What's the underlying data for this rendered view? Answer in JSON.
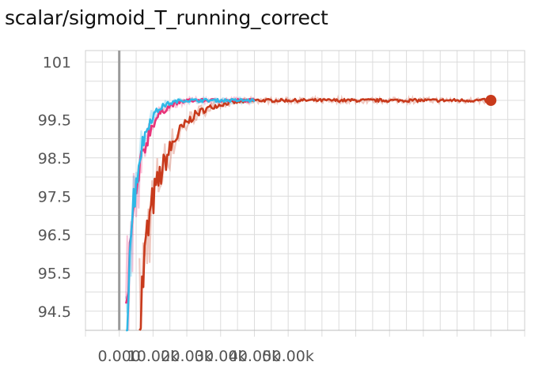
{
  "chart_data": {
    "type": "line",
    "title": "scalar/sigmoid_T_running_correct",
    "xlim": [
      -10000,
      120000
    ],
    "ylim": [
      94.0,
      101.3
    ],
    "x_ticks": [
      0,
      10000,
      20000,
      30000,
      40000,
      50000
    ],
    "x_tick_labels": [
      "0.000",
      "10.00k",
      "20.00k",
      "30.00k",
      "40.00k",
      "50.00k"
    ],
    "y_ticks": [
      94.5,
      95.5,
      96.5,
      97.5,
      98.5,
      99.5,
      101
    ],
    "y_tick_labels": [
      "94.5",
      "95.5",
      "96.5",
      "97.5",
      "98.5",
      "99.5",
      "101"
    ],
    "grid": true,
    "series": [
      {
        "color": "#c83a1c",
        "x": [
          6000,
          7000,
          8000,
          10000,
          12000,
          14000,
          16000,
          18000,
          20000,
          22000,
          25000,
          28000,
          32000,
          36000,
          40000,
          45000,
          50000,
          55000,
          60000,
          65000,
          70000,
          75000,
          80000,
          85000,
          90000,
          95000,
          100000,
          105000,
          110000
        ],
        "y": [
          94.0,
          95.3,
          96.3,
          97.4,
          98.0,
          98.5,
          98.9,
          99.2,
          99.4,
          99.6,
          99.75,
          99.85,
          99.93,
          99.97,
          100.0,
          100.0,
          100.0,
          100.0,
          100.0,
          100.0,
          100.0,
          100.0,
          100.0,
          100.0,
          100.0,
          100.0,
          100.0,
          100.0,
          100.0
        ],
        "end_marker": true
      },
      {
        "color": "#e8347a",
        "x": [
          2000,
          3000,
          4000,
          5000,
          6000,
          7000,
          8000,
          9000,
          10000,
          12000,
          14000,
          16000,
          18000,
          20000,
          25000,
          30000,
          35000,
          40000
        ],
        "y": [
          94.0,
          95.8,
          96.8,
          97.5,
          98.1,
          98.6,
          98.9,
          99.2,
          99.4,
          99.65,
          99.8,
          99.9,
          99.95,
          100.0,
          100.0,
          100.0,
          100.0,
          100.0
        ]
      },
      {
        "color": "#2fb8e6",
        "x": [
          2000,
          3000,
          4000,
          5000,
          6000,
          7000,
          8000,
          9000,
          10000,
          12000,
          14000,
          16000,
          18000,
          20000,
          25000,
          30000,
          35000,
          40000
        ],
        "y": [
          94.0,
          96.1,
          97.2,
          97.9,
          98.5,
          98.9,
          99.2,
          99.45,
          99.6,
          99.8,
          99.9,
          99.95,
          100.0,
          100.0,
          100.0,
          100.0,
          100.0,
          100.0
        ]
      }
    ]
  }
}
